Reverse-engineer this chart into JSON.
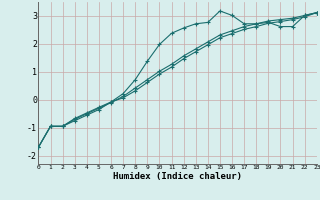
{
  "title": "",
  "xlabel": "Humidex (Indice chaleur)",
  "background_color": "#d8eeed",
  "grid_color_h": "#c9a8a8",
  "grid_color_v": "#c9a8a8",
  "line_color": "#1a6e6e",
  "x_range": [
    0,
    23
  ],
  "y_range": [
    -2.3,
    3.5
  ],
  "yticks": [
    -2,
    -1,
    0,
    1,
    2,
    3
  ],
  "xticks": [
    0,
    1,
    2,
    3,
    4,
    5,
    6,
    7,
    8,
    9,
    10,
    11,
    12,
    13,
    14,
    15,
    16,
    17,
    18,
    19,
    20,
    21,
    22,
    23
  ],
  "line1_x": [
    0,
    1,
    2,
    3,
    4,
    5,
    6,
    7,
    8,
    9,
    10,
    11,
    12,
    13,
    14,
    15,
    16,
    17,
    18,
    19,
    20,
    21,
    22,
    23
  ],
  "line1_y": [
    -1.7,
    -0.95,
    -0.95,
    -0.75,
    -0.55,
    -0.35,
    -0.08,
    0.22,
    0.72,
    1.38,
    1.98,
    2.38,
    2.57,
    2.72,
    2.77,
    3.18,
    3.02,
    2.72,
    2.72,
    2.77,
    2.62,
    2.62,
    3.02,
    3.12
  ],
  "line2_x": [
    0,
    1,
    2,
    3,
    4,
    5,
    6,
    7,
    8,
    9,
    10,
    11,
    12,
    13,
    14,
    15,
    16,
    17,
    18,
    19,
    20,
    21,
    22,
    23
  ],
  "line2_y": [
    -1.7,
    -0.95,
    -0.95,
    -0.7,
    -0.5,
    -0.3,
    -0.1,
    0.12,
    0.42,
    0.72,
    1.02,
    1.27,
    1.57,
    1.82,
    2.07,
    2.32,
    2.47,
    2.62,
    2.72,
    2.82,
    2.87,
    2.92,
    3.02,
    3.12
  ],
  "line3_x": [
    0,
    1,
    2,
    3,
    4,
    5,
    6,
    7,
    8,
    9,
    10,
    11,
    12,
    13,
    14,
    15,
    16,
    17,
    18,
    19,
    20,
    21,
    22,
    23
  ],
  "line3_y": [
    -1.7,
    -0.95,
    -0.95,
    -0.67,
    -0.47,
    -0.27,
    -0.08,
    0.07,
    0.32,
    0.62,
    0.92,
    1.17,
    1.47,
    1.72,
    1.97,
    2.22,
    2.37,
    2.52,
    2.62,
    2.74,
    2.8,
    2.87,
    2.97,
    3.12
  ]
}
